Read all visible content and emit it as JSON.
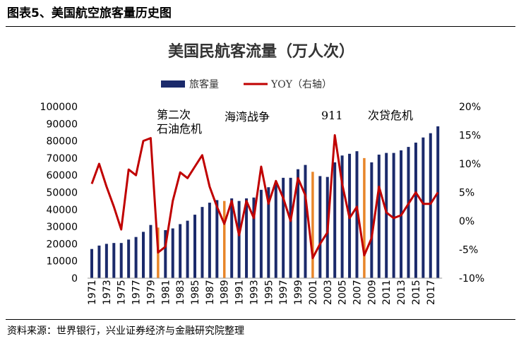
{
  "figure": {
    "title": "图表5、美国航空旅客量历史图",
    "source": "资料来源：世界银行，兴业证券经济与金融研究院整理"
  },
  "chart_data": {
    "type": "bar",
    "title": "美国民航客流量（万人次）",
    "x": [
      1971,
      1972,
      1973,
      1974,
      1975,
      1976,
      1977,
      1978,
      1979,
      1980,
      1981,
      1982,
      1983,
      1984,
      1985,
      1986,
      1987,
      1988,
      1989,
      1990,
      1991,
      1992,
      1993,
      1994,
      1995,
      1996,
      1997,
      1998,
      1999,
      2000,
      2001,
      2002,
      2003,
      2004,
      2005,
      2006,
      2007,
      2008,
      2009,
      2010,
      2011,
      2012,
      2013,
      2014,
      2015,
      2016,
      2017,
      2018
    ],
    "x_tick_labels": [
      "1971",
      "1973",
      "1975",
      "1977",
      "1979",
      "1981",
      "1983",
      "1985",
      "1987",
      "1989",
      "1991",
      "1993",
      "1995",
      "1997",
      "1999",
      "2001",
      "2003",
      "2005",
      "2007",
      "2009",
      "2011",
      "2013",
      "2015",
      "2017"
    ],
    "series": [
      {
        "name": "旅客量",
        "axis": "left",
        "color": "#1b2a6b",
        "highlight_color": "#e8862a",
        "highlight_years": [
          1980,
          1989,
          2001,
          2008
        ],
        "values": [
          17000,
          19000,
          20000,
          20500,
          20500,
          22500,
          24000,
          27000,
          31000,
          29500,
          28000,
          29000,
          31500,
          33500,
          37000,
          41500,
          44000,
          45500,
          45000,
          46500,
          45000,
          46500,
          47000,
          51500,
          53000,
          55500,
          58500,
          58500,
          63500,
          66000,
          62000,
          59500,
          59000,
          67500,
          71500,
          72500,
          74000,
          70000,
          67500,
          72000,
          73000,
          73000,
          74500,
          76500,
          79000,
          82000,
          84500,
          88500
        ]
      },
      {
        "name": "YOY（右轴）",
        "axis": "right",
        "color": "#c00000",
        "values": [
          6.5,
          10,
          6,
          2.5,
          -1.5,
          9,
          8,
          14,
          14.5,
          -5.5,
          -4.5,
          3.5,
          8.5,
          7.5,
          9.5,
          11.5,
          6,
          2.5,
          -0.5,
          3.5,
          -2.5,
          3.5,
          0.5,
          9.5,
          3,
          7,
          4,
          0,
          7.5,
          4.5,
          -6.5,
          -4,
          -2,
          15,
          6.5,
          0.5,
          2.5,
          -6,
          -3,
          6,
          1.5,
          0.5,
          1,
          3,
          5,
          3,
          3,
          5
        ]
      }
    ],
    "y_left": {
      "min": 0,
      "max": 100000,
      "step": 10000,
      "ticks": [
        "0",
        "10000",
        "20000",
        "30000",
        "40000",
        "50000",
        "60000",
        "70000",
        "80000",
        "90000",
        "100000"
      ]
    },
    "y_right": {
      "min": -10,
      "max": 20,
      "step": 5,
      "ticks": [
        "-10%",
        "-5%",
        "0%",
        "5%",
        "10%",
        "15%",
        "20%"
      ]
    },
    "legend": {
      "placement": "top"
    },
    "grid": false,
    "annotations": [
      {
        "lines": [
          "第二次",
          "石油危机"
        ],
        "near_year": 1979
      },
      {
        "lines": [
          "海湾战争"
        ],
        "near_year": 1991
      },
      {
        "lines": [
          "911"
        ],
        "near_year": 2001
      },
      {
        "lines": [
          "次贷危机"
        ],
        "near_year": 2008
      }
    ]
  }
}
